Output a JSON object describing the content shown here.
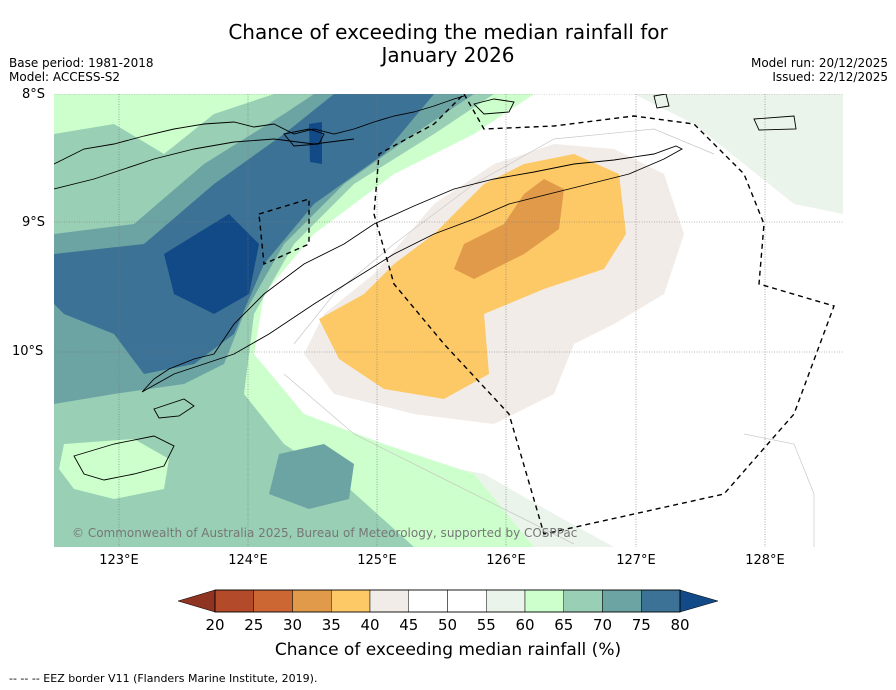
{
  "title_line1": "Chance of exceeding the median rainfall for",
  "title_line2": "January 2026",
  "meta": {
    "base_period": "Base period: 1981-2018",
    "model": "Model: ACCESS-S2",
    "model_run": "Model run: 20/12/2025",
    "issued": "Issued: 22/12/2025"
  },
  "lat_labels": [
    "8°S",
    "9°S",
    "10°S"
  ],
  "lon_labels": [
    "123°E",
    "124°E",
    "125°E",
    "126°E",
    "127°E",
    "128°E"
  ],
  "copyright": "© Commonwealth of Australia 2025, Bureau of Meteorology, supported by COSPPac",
  "colorbar": {
    "title": "Chance of exceeding median rainfall (%)",
    "ticks": [
      "20",
      "25",
      "30",
      "35",
      "40",
      "45",
      "50",
      "55",
      "60",
      "65",
      "70",
      "75",
      "80"
    ],
    "colors": [
      "#b34a2a",
      "#cc6633",
      "#e09a4a",
      "#fdc966",
      "#f2ece8",
      "#ffffff",
      "#ffffff",
      "#ebf4ea",
      "#ccffcc",
      "#99cfb4",
      "#6ca4a4",
      "#3c7296"
    ],
    "under_color": "#8f3322",
    "over_color": "#114a86"
  },
  "footnote": "--  --  -- EEZ border V11 (Flanders Marine Institute, 2019)."
}
